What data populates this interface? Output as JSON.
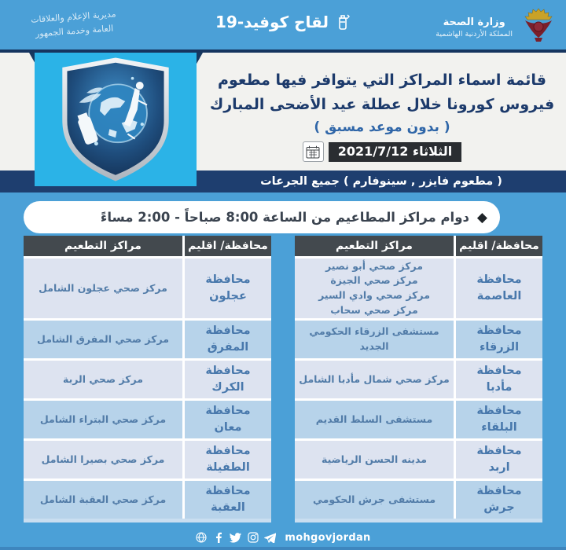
{
  "topbar": {
    "dept_line1": "مديرية الإعلام والعلاقات",
    "dept_line2": "العامة وخدمة الجمهور",
    "center_title": "لقاح كوفيد-19",
    "ministry_name": "وزارة الصحة",
    "ministry_sub": "المملكة الأردنية الهاشمية"
  },
  "header": {
    "title_line1": "قائمة اسماء المراكز التي يتوافر فيها مطعوم",
    "title_line2": "فيروس كورونا خلال عطلة عيد الأضحى المبارك",
    "subtitle": "( بدون موعد مسبق )",
    "date_text": "الثلاثاء  2021/7/12",
    "vaccine_bar": "( مطعوم فايزر , سينوفارم )  جميع الجرعات"
  },
  "hours_banner": {
    "diamond_icon": "◆",
    "text": "دوام مراكز المطاعيم من الساعة 8:00 صباحاً - 2:00 مساءً"
  },
  "table_headers": {
    "centers": "مراكز التطعيم",
    "region": "محافظة/ اقليم"
  },
  "right_table_rows": [
    {
      "region": "محافظة\nالعاصمة",
      "centers": [
        "مركز صحي أبو نصير",
        "مركز صحي الجيزة",
        "مركز صحي وادي السير",
        "مركز صحي سحاب"
      ]
    },
    {
      "region": "محافظة\nالزرقاء",
      "centers": [
        "مستشفى الزرقاء الحكومي الجديد"
      ]
    },
    {
      "region": "محافظة\nمأدبا",
      "centers": [
        "مركز صحي شمال مأدبا الشامل"
      ]
    },
    {
      "region": "محافظة\nالبلقاء",
      "centers": [
        "مستشفى السلط القديم"
      ]
    },
    {
      "region": "محافظة\nاربد",
      "centers": [
        "مدينه الحسن الرياضية"
      ]
    },
    {
      "region": "محافظة\nجرش",
      "centers": [
        "مستشفى جرش الحكومي"
      ]
    }
  ],
  "left_table_rows": [
    {
      "region": "محافظة\nعجلون",
      "centers": [
        "مركز صحي عجلون الشامل"
      ]
    },
    {
      "region": "محافظة\nالمفرق",
      "centers": [
        "مركز صحي المفرق الشامل"
      ]
    },
    {
      "region": "محافظة\nالكرك",
      "centers": [
        "مركز صحي الربة"
      ]
    },
    {
      "region": "محافظة\nمعان",
      "centers": [
        "مركز صحي البتراء الشامل"
      ]
    },
    {
      "region": "محافظة\nالطفيلة",
      "centers": [
        "مركز صحي بصيرا الشامل"
      ]
    },
    {
      "region": "محافظة\nالعقبة",
      "centers": [
        "مركز صحي العقبة الشامل"
      ]
    }
  ],
  "footer": {
    "handle": "mohgovjordan",
    "icons": [
      "globe-icon",
      "facebook-icon",
      "twitter-icon",
      "instagram-icon",
      "telegram-icon"
    ]
  },
  "colors": {
    "background_blue": "#4BA0D7",
    "navy": "#1E3E6F",
    "cyan_badge": "#2BB3E7",
    "card_offwhite": "#F2F2EF",
    "header_charcoal": "#43494E",
    "row_light": "#DDE3F0",
    "row_blue": "#B7D3EA",
    "row_text_blue": "#4878AC",
    "date_badge_dark": "#2A2D31"
  }
}
